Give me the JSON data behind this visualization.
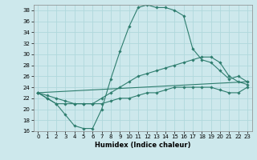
{
  "xlabel": "Humidex (Indice chaleur)",
  "bg_color": "#cde8ec",
  "grid_color": "#b0d8dc",
  "line_color": "#2e7d6e",
  "xlim": [
    -0.5,
    23.5
  ],
  "ylim": [
    16,
    39
  ],
  "xticks": [
    0,
    1,
    2,
    3,
    4,
    5,
    6,
    7,
    8,
    9,
    10,
    11,
    12,
    13,
    14,
    15,
    16,
    17,
    18,
    19,
    20,
    21,
    22,
    23
  ],
  "yticks": [
    16,
    18,
    20,
    22,
    24,
    26,
    28,
    30,
    32,
    34,
    36,
    38
  ],
  "line1_x": [
    0,
    1,
    2,
    3,
    4,
    5,
    6,
    7,
    8,
    9,
    10,
    11,
    12,
    13,
    14,
    15,
    16,
    17,
    18,
    19,
    20,
    21,
    22,
    23
  ],
  "line1_y": [
    23,
    22,
    21,
    21,
    21,
    21,
    21,
    22,
    23,
    24,
    25,
    26,
    26.5,
    27,
    27.5,
    28,
    28.5,
    29,
    29.5,
    29.5,
    28.5,
    26,
    25,
    24.5
  ],
  "line2_x": [
    0,
    1,
    2,
    3,
    4,
    5,
    6,
    7,
    8,
    9,
    10,
    11,
    12,
    13,
    14,
    15,
    16,
    17,
    18,
    19,
    20,
    21,
    22,
    23
  ],
  "line2_y": [
    23,
    22,
    21,
    19,
    17,
    16.5,
    16.5,
    20,
    25.5,
    30.5,
    35,
    38.5,
    39,
    38.5,
    38.5,
    38,
    37,
    31,
    29,
    28.5,
    27,
    25.5,
    26,
    25
  ],
  "line3_x": [
    0,
    23
  ],
  "line3_y": [
    23,
    25
  ],
  "line4_x": [
    0,
    1,
    2,
    3,
    4,
    5,
    6,
    7,
    8,
    9,
    10,
    11,
    12,
    13,
    14,
    15,
    16,
    17,
    18,
    19,
    20,
    21,
    22,
    23
  ],
  "line4_y": [
    23,
    22.5,
    22,
    21.5,
    21,
    21,
    21,
    21,
    21.5,
    22,
    22,
    22.5,
    23,
    23,
    23.5,
    24,
    24,
    24,
    24,
    24,
    23.5,
    23,
    23,
    24
  ]
}
